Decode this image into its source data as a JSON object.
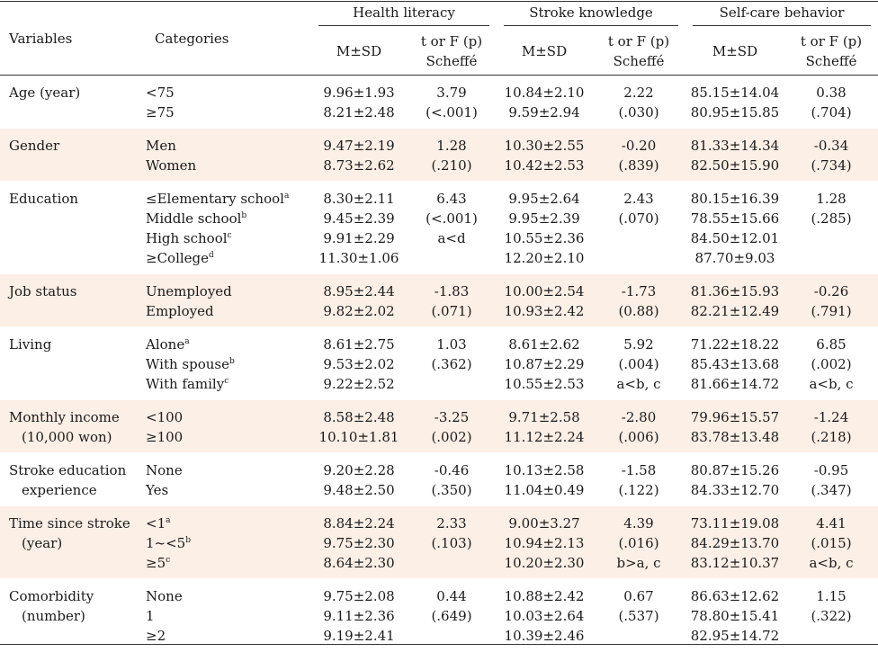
{
  "header": {
    "variables_label": "Variables",
    "categories_label": "Categories",
    "groups": [
      "Health literacy",
      "Stroke knowledge",
      "Self-care behavior"
    ],
    "msd_label": "M±SD",
    "test_label_1": "t or F (p)",
    "test_label_2": "Scheffé"
  },
  "rows": [
    {
      "variable": [
        "Age (year)"
      ],
      "categories": [
        "<75",
        "≥75"
      ],
      "cat_sups": [
        "",
        ""
      ],
      "hl_msd": [
        "9.96±1.93",
        "8.21±2.48"
      ],
      "hl_test": [
        "3.79",
        "(<.001)"
      ],
      "sk_msd": [
        "10.84±2.10",
        "9.59±2.94"
      ],
      "sk_test": [
        "2.22",
        "(.030)"
      ],
      "sc_msd": [
        "85.15±14.04",
        "80.95±15.85"
      ],
      "sc_test": [
        "0.38",
        "(.704)"
      ]
    },
    {
      "variable": [
        "Gender"
      ],
      "categories": [
        "Men",
        "Women"
      ],
      "cat_sups": [
        "",
        ""
      ],
      "hl_msd": [
        "9.47±2.19",
        "8.73±2.62"
      ],
      "hl_test": [
        "1.28",
        "(.210)"
      ],
      "sk_msd": [
        "10.30±2.55",
        "10.42±2.53"
      ],
      "sk_test": [
        "-0.20",
        "(.839)"
      ],
      "sc_msd": [
        "81.33±14.34",
        "82.50±15.90"
      ],
      "sc_test": [
        "-0.34",
        "(.734)"
      ]
    },
    {
      "variable": [
        "Education"
      ],
      "categories": [
        "≤Elementary school",
        "Middle school",
        "High school",
        "≥College"
      ],
      "cat_sups": [
        "a",
        "b",
        "c",
        "d"
      ],
      "hl_msd": [
        "8.30±2.11",
        "9.45±2.39",
        "9.91±2.29",
        "11.30±1.06"
      ],
      "hl_test": [
        "6.43",
        "(<.001)",
        "a<d"
      ],
      "sk_msd": [
        "9.95±2.64",
        "9.95±2.39",
        "10.55±2.36",
        "12.20±2.10"
      ],
      "sk_test": [
        "2.43",
        "(.070)"
      ],
      "sc_msd": [
        "80.15±16.39",
        "78.55±15.66",
        "84.50±12.01",
        "87.70±9.03"
      ],
      "sc_test": [
        "1.28",
        "(.285)"
      ]
    },
    {
      "variable": [
        "Job status"
      ],
      "categories": [
        "Unemployed",
        "Employed"
      ],
      "cat_sups": [
        "",
        ""
      ],
      "hl_msd": [
        "8.95±2.44",
        "9.82±2.02"
      ],
      "hl_test": [
        "-1.83",
        "(.071)"
      ],
      "sk_msd": [
        "10.00±2.54",
        "10.93±2.42"
      ],
      "sk_test": [
        "-1.73",
        "(0.88)"
      ],
      "sc_msd": [
        "81.36±15.93",
        "82.21±12.49"
      ],
      "sc_test": [
        "-0.26",
        "(.791)"
      ]
    },
    {
      "variable": [
        "Living"
      ],
      "categories": [
        "Alone",
        "With spouse",
        "With family"
      ],
      "cat_sups": [
        "a",
        "b",
        "c"
      ],
      "hl_msd": [
        "8.61±2.75",
        "9.53±2.02",
        "9.22±2.52"
      ],
      "hl_test": [
        "1.03",
        "(.362)"
      ],
      "sk_msd": [
        "8.61±2.62",
        "10.87±2.29",
        "10.55±2.53"
      ],
      "sk_test": [
        "5.92",
        "(.004)",
        "a<b, c"
      ],
      "sc_msd": [
        "71.22±18.22",
        "85.43±13.68",
        "81.66±14.72"
      ],
      "sc_test": [
        "6.85",
        "(.002)",
        "a<b, c"
      ]
    },
    {
      "variable": [
        "Monthly income",
        "(10,000 won)"
      ],
      "categories": [
        "<100",
        "≥100"
      ],
      "cat_sups": [
        "",
        ""
      ],
      "hl_msd": [
        "8.58±2.48",
        "10.10±1.81"
      ],
      "hl_test": [
        "-3.25",
        "(.002)"
      ],
      "sk_msd": [
        "9.71±2.58",
        "11.12±2.24"
      ],
      "sk_test": [
        "-2.80",
        "(.006)"
      ],
      "sc_msd": [
        "79.96±15.57",
        "83.78±13.48"
      ],
      "sc_test": [
        "-1.24",
        "(.218)"
      ]
    },
    {
      "variable": [
        "Stroke education",
        "experience"
      ],
      "categories": [
        "None",
        "Yes"
      ],
      "cat_sups": [
        "",
        ""
      ],
      "hl_msd": [
        "9.20±2.28",
        "9.48±2.50"
      ],
      "hl_test": [
        "-0.46",
        "(.350)"
      ],
      "sk_msd": [
        "10.13±2.58",
        "11.04±0.49"
      ],
      "sk_test": [
        "-1.58",
        "(.122)"
      ],
      "sc_msd": [
        "80.87±15.26",
        "84.33±12.70"
      ],
      "sc_test": [
        "-0.95",
        "(.347)"
      ]
    },
    {
      "variable": [
        "Time since stroke",
        "(year)"
      ],
      "categories": [
        "<1",
        "1~<5",
        "≥5"
      ],
      "cat_sups": [
        "a",
        "b",
        "c"
      ],
      "hl_msd": [
        "8.84±2.24",
        "9.75±2.30",
        "8.64±2.30"
      ],
      "hl_test": [
        "2.33",
        "(.103)"
      ],
      "sk_msd": [
        "9.00±3.27",
        "10.94±2.13",
        "10.20±2.30"
      ],
      "sk_test": [
        "4.39",
        "(.016)",
        "b>a, c"
      ],
      "sc_msd": [
        "73.11±19.08",
        "84.29±13.70",
        "83.12±10.37"
      ],
      "sc_test": [
        "4.41",
        "(.015)",
        "a<b, c"
      ]
    },
    {
      "variable": [
        "Comorbidity",
        "(number)"
      ],
      "categories": [
        "None",
        "1",
        "≥2"
      ],
      "cat_sups": [
        "",
        "",
        ""
      ],
      "hl_msd": [
        "9.75±2.08",
        "9.11±2.36",
        "9.19±2.41"
      ],
      "hl_test": [
        "0.44",
        "(.649)"
      ],
      "sk_msd": [
        "10.88±2.42",
        "10.03±2.64",
        "10.39±2.46"
      ],
      "sk_test": [
        "0.67",
        "(.537)"
      ],
      "sc_msd": [
        "86.63±12.62",
        "78.80±15.41",
        "82.95±14.72"
      ],
      "sc_test": [
        "1.15",
        "(.322)"
      ]
    }
  ]
}
